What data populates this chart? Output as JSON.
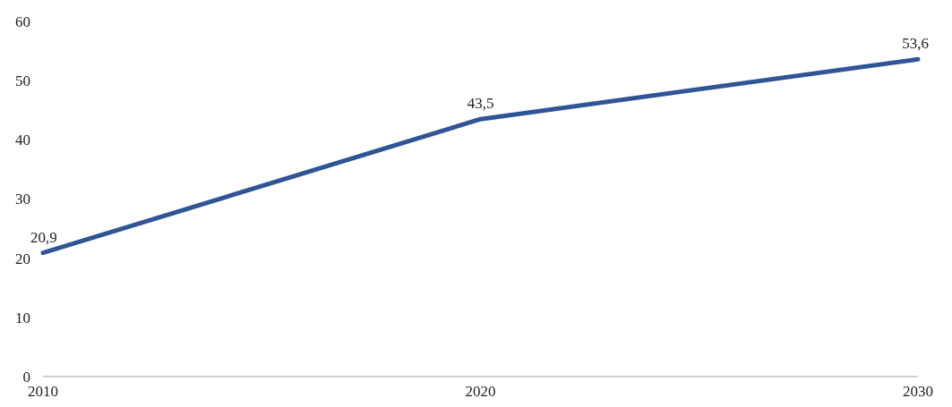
{
  "chart_data": {
    "type": "line",
    "x": [
      2010,
      2020,
      2030
    ],
    "series": [
      {
        "color": "#2f5597",
        "values": [
          20.9,
          43.5,
          53.6
        ],
        "value_labels": [
          "20,9",
          "43,5",
          "53,6"
        ]
      }
    ],
    "xlim": [
      2010,
      2030
    ],
    "xticks": [
      2010,
      2020,
      2030
    ],
    "ylim": [
      0,
      60
    ],
    "yticks": [
      0,
      10,
      20,
      30,
      40,
      50,
      60
    ],
    "grid": false,
    "marker": "none",
    "line_style": "solid"
  }
}
